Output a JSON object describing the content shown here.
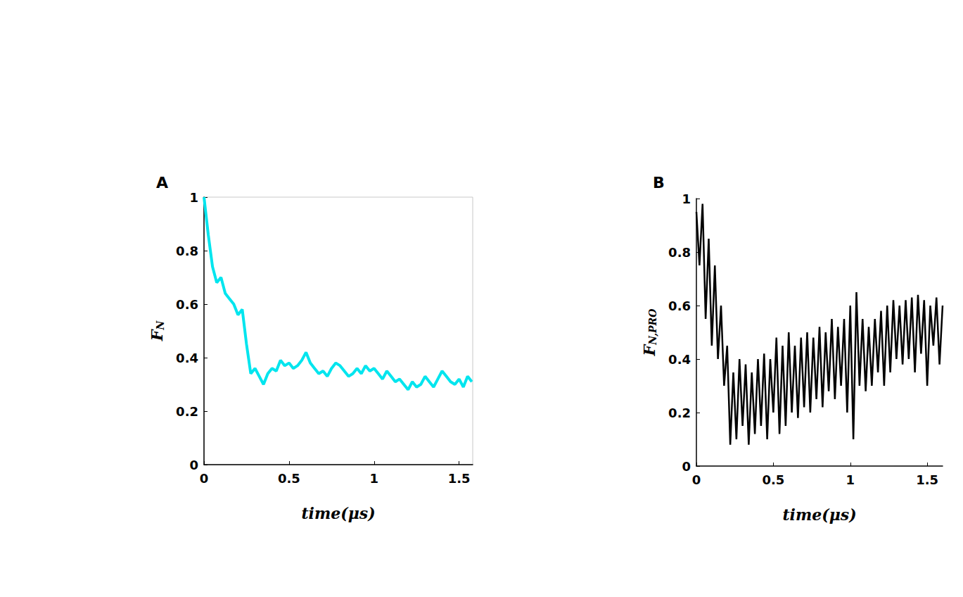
{
  "chart_data": [
    {
      "type": "line",
      "panel": "A",
      "color": "#00e5ee",
      "grid": false,
      "xlabel": "time(μs)",
      "ylabel": {
        "main": "F",
        "sub": "N"
      },
      "xlim": [
        0,
        1.58
      ],
      "ylim": [
        0,
        1
      ],
      "xticks": [
        0,
        0.5,
        1,
        1.5
      ],
      "yticks": [
        0,
        0.2,
        0.4,
        0.6,
        0.8,
        1
      ],
      "x": [
        0,
        0.025,
        0.05,
        0.075,
        0.1,
        0.125,
        0.15,
        0.175,
        0.2,
        0.225,
        0.25,
        0.275,
        0.3,
        0.325,
        0.35,
        0.375,
        0.4,
        0.425,
        0.45,
        0.475,
        0.5,
        0.525,
        0.55,
        0.575,
        0.6,
        0.625,
        0.65,
        0.675,
        0.7,
        0.725,
        0.75,
        0.775,
        0.8,
        0.825,
        0.85,
        0.875,
        0.9,
        0.925,
        0.95,
        0.975,
        1.0,
        1.025,
        1.05,
        1.075,
        1.1,
        1.125,
        1.15,
        1.175,
        1.2,
        1.225,
        1.25,
        1.275,
        1.3,
        1.325,
        1.35,
        1.375,
        1.4,
        1.425,
        1.45,
        1.475,
        1.5,
        1.525,
        1.55,
        1.575
      ],
      "values": [
        1.0,
        0.86,
        0.74,
        0.68,
        0.7,
        0.64,
        0.62,
        0.6,
        0.56,
        0.58,
        0.45,
        0.34,
        0.36,
        0.33,
        0.3,
        0.34,
        0.36,
        0.35,
        0.39,
        0.37,
        0.38,
        0.36,
        0.37,
        0.39,
        0.42,
        0.38,
        0.36,
        0.34,
        0.35,
        0.33,
        0.36,
        0.38,
        0.37,
        0.35,
        0.33,
        0.34,
        0.36,
        0.34,
        0.37,
        0.35,
        0.36,
        0.34,
        0.32,
        0.35,
        0.33,
        0.31,
        0.32,
        0.3,
        0.28,
        0.31,
        0.29,
        0.3,
        0.33,
        0.31,
        0.29,
        0.32,
        0.35,
        0.33,
        0.31,
        0.3,
        0.32,
        0.29,
        0.33,
        0.31
      ]
    },
    {
      "type": "line",
      "panel": "B",
      "color": "#000000",
      "grid": false,
      "xlabel": "time(μs)",
      "ylabel": {
        "main": "F",
        "sub": "N,PRO"
      },
      "xlim": [
        0,
        1.6
      ],
      "ylim": [
        0,
        1
      ],
      "xticks": [
        0,
        0.5,
        1,
        1.5
      ],
      "yticks": [
        0,
        0.2,
        0.4,
        0.6,
        0.8,
        1
      ],
      "x": [
        0,
        0.02,
        0.04,
        0.06,
        0.08,
        0.1,
        0.12,
        0.14,
        0.16,
        0.18,
        0.2,
        0.22,
        0.24,
        0.26,
        0.28,
        0.3,
        0.32,
        0.34,
        0.36,
        0.38,
        0.4,
        0.42,
        0.44,
        0.46,
        0.48,
        0.5,
        0.52,
        0.54,
        0.56,
        0.58,
        0.6,
        0.62,
        0.64,
        0.66,
        0.68,
        0.7,
        0.72,
        0.74,
        0.76,
        0.78,
        0.8,
        0.82,
        0.84,
        0.86,
        0.88,
        0.9,
        0.92,
        0.94,
        0.96,
        0.98,
        1.0,
        1.02,
        1.04,
        1.06,
        1.08,
        1.1,
        1.12,
        1.14,
        1.16,
        1.18,
        1.2,
        1.22,
        1.24,
        1.26,
        1.28,
        1.3,
        1.32,
        1.34,
        1.36,
        1.38,
        1.4,
        1.42,
        1.44,
        1.46,
        1.48,
        1.5,
        1.52,
        1.54,
        1.56,
        1.58,
        1.6
      ],
      "values": [
        0.95,
        0.75,
        0.98,
        0.55,
        0.85,
        0.45,
        0.75,
        0.4,
        0.6,
        0.3,
        0.45,
        0.08,
        0.35,
        0.1,
        0.4,
        0.15,
        0.38,
        0.08,
        0.35,
        0.12,
        0.4,
        0.15,
        0.42,
        0.1,
        0.4,
        0.2,
        0.48,
        0.12,
        0.45,
        0.15,
        0.5,
        0.2,
        0.45,
        0.18,
        0.48,
        0.22,
        0.5,
        0.2,
        0.48,
        0.25,
        0.52,
        0.22,
        0.5,
        0.28,
        0.55,
        0.25,
        0.52,
        0.3,
        0.55,
        0.2,
        0.6,
        0.1,
        0.65,
        0.3,
        0.55,
        0.28,
        0.52,
        0.3,
        0.55,
        0.35,
        0.58,
        0.3,
        0.6,
        0.35,
        0.62,
        0.4,
        0.6,
        0.38,
        0.62,
        0.4,
        0.63,
        0.35,
        0.64,
        0.42,
        0.62,
        0.3,
        0.6,
        0.45,
        0.63,
        0.38,
        0.6
      ]
    }
  ]
}
